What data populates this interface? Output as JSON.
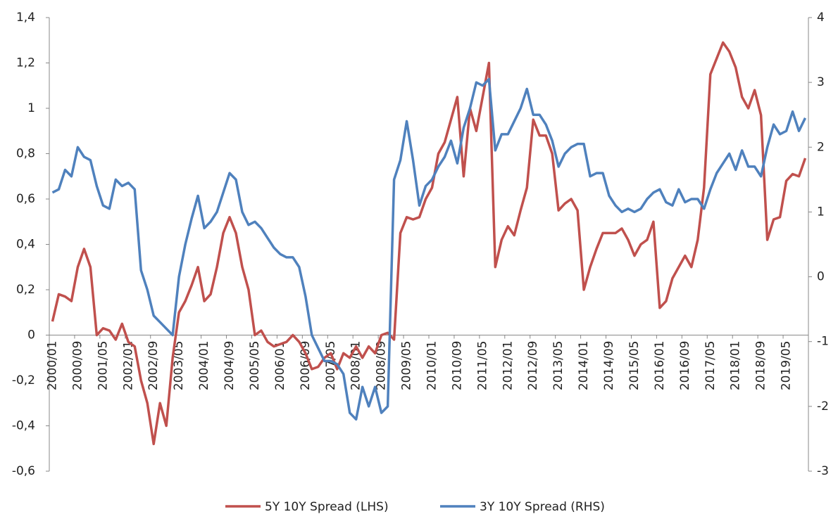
{
  "chart_data": {
    "type": "line",
    "categories": [
      "2000/01",
      null,
      null,
      null,
      "2000/09",
      null,
      null,
      null,
      "2001/05",
      null,
      null,
      null,
      "2002/01",
      null,
      null,
      null,
      "2002/09",
      null,
      null,
      null,
      "2003/05",
      null,
      null,
      null,
      "2004/01",
      null,
      null,
      null,
      "2004/09",
      null,
      null,
      null,
      "2005/05",
      null,
      null,
      null,
      "2006/01",
      null,
      null,
      null,
      "2006/09",
      null,
      null,
      null,
      "2007/05",
      null,
      null,
      null,
      "2008/01",
      null,
      null,
      null,
      "2008/09",
      null,
      null,
      null,
      "2009/05",
      null,
      null,
      null,
      "2010/01",
      null,
      null,
      null,
      "2010/09",
      null,
      null,
      null,
      "2011/05",
      null,
      null,
      null,
      "2012/01",
      null,
      null,
      null,
      "2012/09",
      null,
      null,
      null,
      "2013/05",
      null,
      null,
      null,
      "2014/01",
      null,
      null,
      null,
      "2014/09",
      null,
      null,
      null,
      "2015/05",
      null,
      null,
      null,
      "2016/01",
      null,
      null,
      null,
      "2016/09",
      null,
      null,
      null,
      "2017/05",
      null,
      null,
      null,
      "2018/01",
      null,
      null,
      null,
      "2018/09",
      null,
      null,
      null,
      "2019/05",
      null,
      null,
      null
    ],
    "series": [
      {
        "name": "5Y 10Y Spread (LHS)",
        "color": "#c0504d",
        "values": [
          0.06,
          0.18,
          0.17,
          0.15,
          0.3,
          0.38,
          0.3,
          0.0,
          0.03,
          0.02,
          -0.02,
          0.05,
          -0.03,
          -0.05,
          -0.2,
          -0.3,
          -0.48,
          -0.3,
          -0.4,
          -0.1,
          0.1,
          0.15,
          0.22,
          0.3,
          0.15,
          0.18,
          0.3,
          0.45,
          0.52,
          0.45,
          0.3,
          0.2,
          0.0,
          0.02,
          -0.03,
          -0.05,
          -0.04,
          -0.03,
          0.0,
          -0.03,
          -0.08,
          -0.15,
          -0.14,
          -0.1,
          -0.08,
          -0.15,
          -0.08,
          -0.1,
          -0.05,
          -0.1,
          -0.05,
          -0.08,
          0.0,
          0.01,
          -0.02,
          0.45,
          0.52,
          0.51,
          0.52,
          0.6,
          0.65,
          0.8,
          0.85,
          0.95,
          1.05,
          0.7,
          1.0,
          0.9,
          1.05,
          1.2,
          0.3,
          0.42,
          0.48,
          0.44,
          0.55,
          0.65,
          0.95,
          0.88,
          0.88,
          0.8,
          0.55,
          0.58,
          0.6,
          0.55,
          0.2,
          0.3,
          0.38,
          0.45,
          0.45,
          0.45,
          0.47,
          0.42,
          0.35,
          0.4,
          0.42,
          0.5,
          0.12,
          0.15,
          0.25,
          0.3,
          0.35,
          0.3,
          0.42,
          0.65,
          1.15,
          1.22,
          1.29,
          1.25,
          1.18,
          1.05,
          1.0,
          1.08,
          0.97,
          0.42,
          0.51,
          0.52,
          0.68,
          0.71,
          0.7,
          0.78
        ]
      },
      {
        "name": "3Y 10Y Spread (RHS)",
        "color": "#4f81bd",
        "axis": "y2",
        "values": [
          1.3,
          1.35,
          1.65,
          1.55,
          2.0,
          1.85,
          1.8,
          1.4,
          1.1,
          1.05,
          1.5,
          1.4,
          1.45,
          1.35,
          0.1,
          -0.2,
          -0.6,
          -0.7,
          -0.8,
          -0.9,
          0.0,
          0.5,
          0.9,
          1.25,
          0.75,
          0.85,
          1.0,
          1.3,
          1.6,
          1.5,
          1.0,
          0.8,
          0.85,
          0.75,
          0.6,
          0.45,
          0.35,
          0.3,
          0.3,
          0.15,
          -0.3,
          -0.9,
          -1.1,
          -1.3,
          -1.3,
          -1.35,
          -1.5,
          -2.1,
          -2.2,
          -1.7,
          -2.0,
          -1.7,
          -2.1,
          -2.0,
          1.5,
          1.8,
          2.4,
          1.8,
          1.1,
          1.4,
          1.5,
          1.7,
          1.85,
          2.1,
          1.75,
          2.3,
          2.6,
          3.0,
          2.95,
          3.05,
          1.95,
          2.2,
          2.2,
          2.4,
          2.6,
          2.9,
          2.5,
          2.5,
          2.35,
          2.1,
          1.7,
          1.9,
          2.0,
          2.05,
          2.05,
          1.55,
          1.6,
          1.6,
          1.25,
          1.1,
          1.0,
          1.05,
          1.0,
          1.05,
          1.2,
          1.3,
          1.35,
          1.15,
          1.1,
          1.35,
          1.15,
          1.2,
          1.2,
          1.05,
          1.35,
          1.6,
          1.75,
          1.9,
          1.65,
          1.95,
          1.7,
          1.7,
          1.55,
          2.0,
          2.35,
          2.2,
          2.25,
          2.55,
          2.25,
          2.45
        ]
      }
    ],
    "ylim": [
      -0.6,
      1.4
    ],
    "yticks": [
      {
        "value": -0.6,
        "label": "-0,6"
      },
      {
        "value": -0.4,
        "label": "-0,4"
      },
      {
        "value": -0.2,
        "label": "-0,2"
      },
      0,
      {
        "value": 0.2,
        "label": "0,2"
      },
      {
        "value": 0.4,
        "label": "0,4"
      },
      {
        "value": 0.6,
        "label": "0,6"
      },
      {
        "value": 0.8,
        "label": "0,8"
      },
      1,
      {
        "value": 1.2,
        "label": "1,2"
      },
      {
        "value": 1.4,
        "label": "1,4"
      }
    ],
    "y2lim": [
      -3,
      4
    ],
    "y2ticks": [
      -3,
      -2,
      -1,
      0,
      1,
      2,
      3,
      4
    ],
    "legend": "bottom"
  }
}
